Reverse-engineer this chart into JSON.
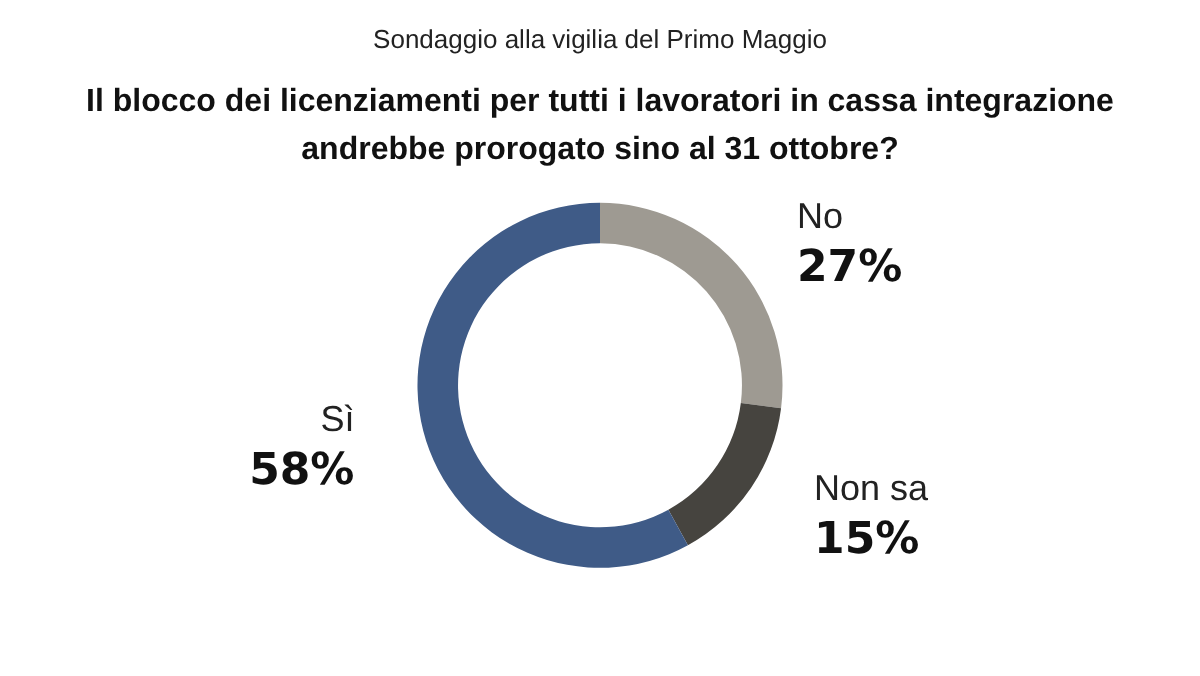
{
  "chart_data": {
    "type": "donut",
    "subtitle": "Sondaggio alla vigilia del Primo Maggio",
    "title": "Il blocco dei licenziamenti per tutti i lavoratori in cassa integrazione\nandrebbe prorogato sino al 31 ottobre?",
    "categories": [
      "No",
      "Non sa",
      "Sì"
    ],
    "values": [
      27,
      15,
      58
    ],
    "colors": [
      "#9e9a92",
      "#46443f",
      "#3f5b87"
    ],
    "value_labels": [
      "27%",
      "15%",
      "58%"
    ],
    "legend": false
  }
}
